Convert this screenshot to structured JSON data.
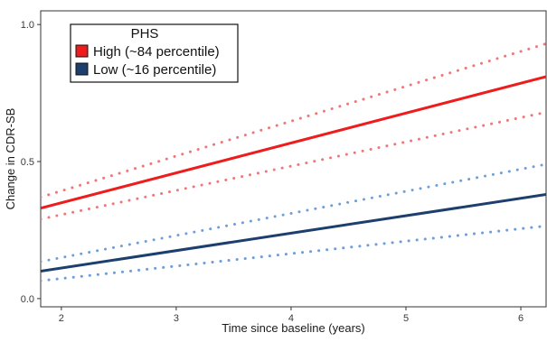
{
  "chart_data": {
    "type": "line",
    "title": "",
    "xlabel": "Time since baseline (years)",
    "ylabel": "Change in CDR-SB",
    "xlim": [
      1.82,
      6.22
    ],
    "ylim": [
      -0.03,
      1.05
    ],
    "x_ticks": [
      2,
      3,
      4,
      5,
      6
    ],
    "x_tick_labels": [
      "2",
      "3",
      "4",
      "5",
      "6"
    ],
    "y_ticks": [
      0.0,
      0.5,
      1.0
    ],
    "y_tick_labels": [
      "0.0",
      "0.5",
      "1.0"
    ],
    "grid": false,
    "legend": {
      "title": "PHS",
      "placement": "top-left"
    },
    "series": [
      {
        "name": "High (~84 percentile)",
        "color": "#ee1c1c",
        "line_style": "solid",
        "x": [
          1.82,
          6.22
        ],
        "y": [
          0.33,
          0.81
        ]
      },
      {
        "name": "High (~84 percentile) upper bound",
        "legend": false,
        "color": "#f07777",
        "line_style": "dotted",
        "x": [
          1.82,
          6.22
        ],
        "y": [
          0.37,
          0.93
        ]
      },
      {
        "name": "High (~84 percentile) lower bound",
        "legend": false,
        "color": "#f07777",
        "line_style": "dotted",
        "x": [
          1.82,
          6.22
        ],
        "y": [
          0.29,
          0.68
        ]
      },
      {
        "name": "Low (~16 percentile)",
        "color": "#1c3f6e",
        "line_style": "solid",
        "x": [
          1.82,
          6.22
        ],
        "y": [
          0.1,
          0.38
        ]
      },
      {
        "name": "Low (~16 percentile) upper bound",
        "legend": false,
        "color": "#6e9fdb",
        "line_style": "dotted",
        "x": [
          1.82,
          6.22
        ],
        "y": [
          0.135,
          0.49
        ]
      },
      {
        "name": "Low (~16 percentile) lower bound",
        "legend": false,
        "color": "#6e9fdb",
        "line_style": "dotted",
        "x": [
          1.82,
          6.22
        ],
        "y": [
          0.065,
          0.265
        ]
      }
    ]
  }
}
